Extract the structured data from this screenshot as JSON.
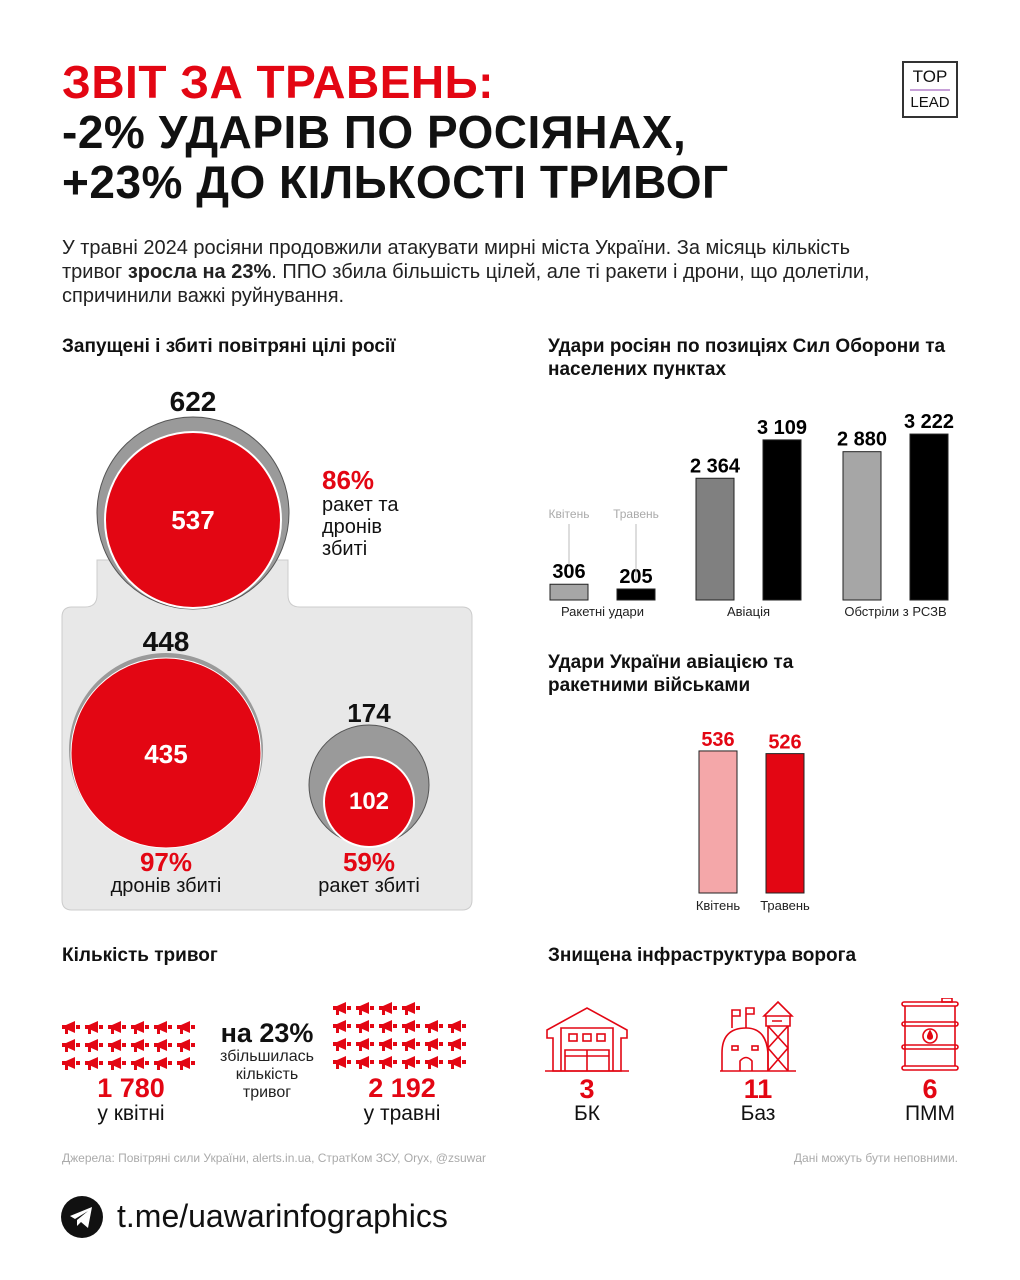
{
  "header": {
    "line1": "ЗВІТ ЗА ТРАВЕНЬ:",
    "line2": "-2% УДАРІВ ПО РОСІЯНАХ,",
    "line3": "+23% ДО КІЛЬКОСТІ ТРИВОГ",
    "logo_top": "TOP",
    "logo_bottom": "LEAD"
  },
  "intro": {
    "part1": "У травні 2024 росіяни продовжили атакувати мирні міста України. За місяць кількість тривог ",
    "bold": "зросла на 23%",
    "part2": ". ППО збила більшість цілей, але ті ракети і дрони, що долетіли, спричинили важкі руйнування."
  },
  "colors": {
    "accent": "#e30613",
    "panel": "#e8e8e8",
    "grey_bar": "#a6a6a6",
    "dark_grey_bar": "#808080",
    "black_bar": "#000000",
    "pink_bar": "#f4a7a9"
  },
  "air_targets": {
    "title": "Запущені і збиті повітряні цілі росії",
    "total": {
      "launched": "622",
      "shot": "537",
      "pct": "86%",
      "label": "ракет та дронів збиті"
    },
    "drones": {
      "launched": "448",
      "shot": "435",
      "pct": "97%",
      "label": "дронів збиті"
    },
    "missiles": {
      "launched": "174",
      "shot": "102",
      "pct": "59%",
      "label": "ракет збиті"
    }
  },
  "chart_data": [
    {
      "type": "bar",
      "title": "Удари росіян по позиціях Сил Оборони та населених пунктах",
      "categories": [
        "Ракетні удари",
        "Авіація",
        "Обстріли з РСЗВ"
      ],
      "series": [
        {
          "name": "Квітень",
          "values": [
            306,
            2364,
            2880
          ],
          "colors": [
            "#a6a6a6",
            "#808080",
            "#a6a6a6"
          ]
        },
        {
          "name": "Травень",
          "values": [
            205,
            3109,
            3222
          ],
          "colors": [
            "#000000",
            "#000000",
            "#000000"
          ]
        }
      ],
      "labels": [
        [
          "306",
          "2 364",
          "2 880"
        ],
        [
          "205",
          "3 109",
          "3 222"
        ]
      ],
      "legend": "inline-above-first-group",
      "grid": false
    },
    {
      "type": "bar",
      "title": "Удари України авіацією та ракетними військами",
      "categories": [
        "Квітень",
        "Травень"
      ],
      "values": [
        536,
        526
      ],
      "labels": [
        "536",
        "526"
      ],
      "colors": [
        "#f4a7a9",
        "#e30613"
      ],
      "grid": false
    }
  ],
  "alarms": {
    "title": "Кількість тривог",
    "april_value": "1 780",
    "april_label": "у квітні",
    "may_value": "2 192",
    "may_label": "у травні",
    "change": "на 23%",
    "change_text": "збільшилась кількість тривог",
    "icon": "megaphone-icon"
  },
  "infra": {
    "title": "Знищена інфраструктура ворога",
    "items": [
      {
        "value": "3",
        "label": "БК",
        "icon": "warehouse-icon"
      },
      {
        "value": "11",
        "label": "Баз",
        "icon": "military-base-icon"
      },
      {
        "value": "6",
        "label": "ПММ",
        "icon": "fuel-barrel-icon"
      }
    ]
  },
  "footer": {
    "sources": "Джерела: Повітряні сили України, alerts.in.ua, СтратКом ЗСУ, Oryx, @zsuwar",
    "disclaimer": "Дані можуть бути неповними.",
    "link": "t.me/uawarinfographics",
    "link_icon": "telegram-icon"
  }
}
